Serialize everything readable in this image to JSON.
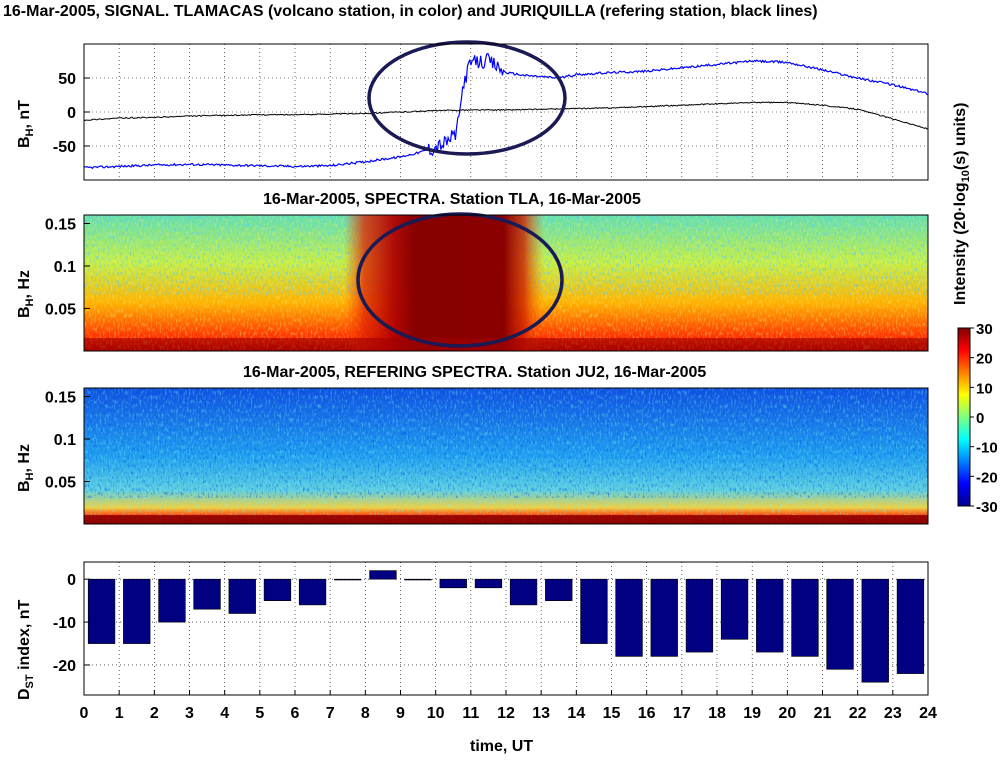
{
  "titles": {
    "signal": "16-Mar-2005, SIGNAL. TLAMACAS (volcano station, in color) and JURIQUILLA (refering station, black lines)",
    "spectra_tla": "16-Mar-2005, SPECTRA. Station TLA, 16-Mar-2005",
    "spectra_ju2": "16-Mar-2005, REFERING SPECTRA. Station JU2, 16-Mar-2005"
  },
  "axis_labels": {
    "signal_y_main": "B",
    "signal_y_sub": "H",
    "signal_y_unit": ", nT",
    "spectra_y_main": "B",
    "spectra_y_sub": "H",
    "spectra_y_unit": ", Hz",
    "dst_y_main": "D",
    "dst_y_sub": "ST",
    "dst_y_unit": " index, nT",
    "x": "time, UT",
    "colorbar_prefix": "Intensity (20·log",
    "colorbar_sub": "10",
    "colorbar_suffix": "(s) units)"
  },
  "colors": {
    "volcano_line": "#0000ff",
    "reference_line": "#000000",
    "bars": "#000080",
    "ellipse": "#1a1a55"
  },
  "chart_data": [
    {
      "type": "line",
      "title": "16-Mar-2005, SIGNAL. TLAMACAS (volcano station, in color) and JURIQUILLA (refering station, black lines)",
      "ylabel": "BH, nT",
      "xlim": [
        0,
        24
      ],
      "ylim": [
        -100,
        100
      ],
      "yticks": [
        -50,
        0,
        50
      ],
      "grid": true,
      "series": [
        {
          "name": "TLAMACAS (volcano station)",
          "x": [
            0,
            1,
            2,
            3,
            4,
            5,
            6,
            7,
            8,
            9,
            9.5,
            10,
            10.3,
            10.6,
            10.8,
            11,
            11.5,
            12,
            12.5,
            13,
            13.5,
            14,
            15,
            16,
            17,
            18,
            19,
            20,
            21,
            22,
            23,
            24
          ],
          "y": [
            -82,
            -80,
            -78,
            -77,
            -78,
            -79,
            -80,
            -79,
            -73,
            -66,
            -60,
            -52,
            -45,
            -30,
            45,
            72,
            75,
            58,
            54,
            52,
            50,
            55,
            58,
            60,
            65,
            70,
            75,
            73,
            62,
            50,
            40,
            27
          ]
        },
        {
          "name": "JURIQUILLA (refering station)",
          "x": [
            0,
            1,
            2,
            3,
            4,
            5,
            6,
            7,
            8,
            9,
            10,
            11,
            12,
            13,
            14,
            15,
            16,
            17,
            18,
            19,
            20,
            21,
            22,
            23,
            24
          ],
          "y": [
            -12,
            -9,
            -8,
            -6,
            -5,
            -4,
            -4,
            -3,
            -2,
            0,
            2,
            3,
            3,
            4,
            5,
            6,
            8,
            10,
            12,
            14,
            14,
            10,
            4,
            -10,
            -25
          ]
        }
      ]
    },
    {
      "type": "heatmap",
      "title": "16-Mar-2005, SPECTRA. Station TLA, 16-Mar-2005",
      "ylabel": "BH, Hz",
      "xlim": [
        0,
        24
      ],
      "ylim": [
        0,
        0.16
      ],
      "yticks": [
        0.05,
        0.1,
        0.15
      ],
      "clim": [
        -30,
        30
      ],
      "colorbar_label": "Intensity (20·log10(s) units)",
      "colorbar_ticks": [
        30,
        20,
        10,
        0,
        -10,
        -20,
        -30
      ]
    },
    {
      "type": "heatmap",
      "title": "16-Mar-2005, REFERING SPECTRA. Station JU2, 16-Mar-2005",
      "ylabel": "BH, Hz",
      "xlim": [
        0,
        24
      ],
      "ylim": [
        0,
        0.16
      ],
      "yticks": [
        0.05,
        0.1,
        0.15
      ],
      "clim": [
        -30,
        30
      ]
    },
    {
      "type": "bar",
      "ylabel": "DST index, nT",
      "xlabel": "time, UT",
      "xlim": [
        0,
        24
      ],
      "ylim": [
        -27,
        4
      ],
      "yticks": [
        0,
        -10,
        -20
      ],
      "xticks": [
        0,
        1,
        2,
        3,
        4,
        5,
        6,
        7,
        8,
        9,
        10,
        11,
        12,
        13,
        14,
        15,
        16,
        17,
        18,
        19,
        20,
        21,
        22,
        23,
        24
      ],
      "grid": true,
      "categories": [
        "0",
        "1",
        "2",
        "3",
        "4",
        "5",
        "6",
        "7",
        "8",
        "9",
        "10",
        "11",
        "12",
        "13",
        "14",
        "15",
        "16",
        "17",
        "18",
        "19",
        "20",
        "21",
        "22",
        "23"
      ],
      "values": [
        -15,
        -15,
        -10,
        -7,
        -8,
        -5,
        -6,
        0,
        2,
        0,
        -2,
        -2,
        -6,
        -5,
        -15,
        -18,
        -18,
        -17,
        -14,
        -17,
        -18,
        -21,
        -24,
        -22
      ]
    }
  ]
}
